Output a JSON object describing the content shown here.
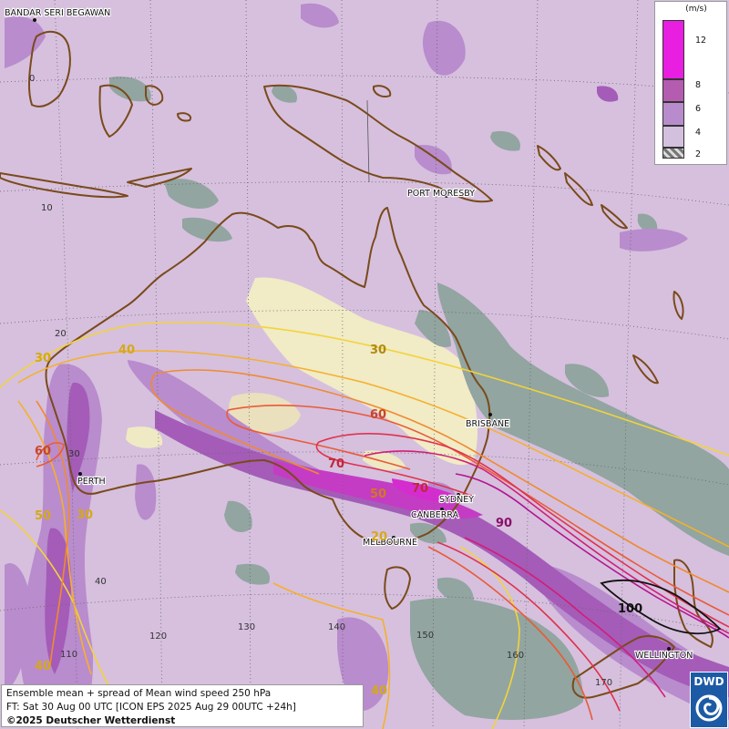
{
  "map": {
    "cities": [
      "BANDAR SERI BEGAWAN",
      "PORT MORESBY",
      "BRISBANE",
      "PERTH",
      "SYDNEY",
      "CANBERRA",
      "MELBOURNE",
      "WELLINGTON"
    ],
    "lat_labels": [
      "0",
      "10",
      "20",
      "30",
      "40"
    ],
    "lon_labels": [
      "110",
      "120",
      "130",
      "140",
      "150",
      "160",
      "170"
    ],
    "contour_labels": [
      "30",
      "40",
      "30",
      "60",
      "60",
      "70",
      "70",
      "50",
      "30",
      "50",
      "40",
      "90",
      "100",
      "40",
      "20"
    ]
  },
  "legend": {
    "unit": "(m/s)",
    "ticks": [
      "12",
      "8",
      "6",
      "4",
      "2"
    ],
    "colors": {
      "level_12": "#e81fe0",
      "level_8": "#b45cb0",
      "level_6": "#b88ccc",
      "level_4": "#d3c0de",
      "level_2": "checker"
    }
  },
  "info": {
    "line1": "Ensemble mean + spread of Mean wind speed 250 hPa",
    "line2": "FT: Sat 30 Aug 00 UTC [ICON EPS 2025 Aug 29 00UTC +24h]",
    "line3": "©2025 Deutscher Wetterdienst"
  },
  "logo": {
    "text": "DWD"
  },
  "colors": {
    "background": "#d6c0de",
    "spread_medium": "#b98ccd",
    "spread_high": "#a45cb8",
    "spread_max": "#d52ccf",
    "calm": "#92a5a0",
    "low_pale": "#efe9c2",
    "coast": "#7a4a1a"
  }
}
